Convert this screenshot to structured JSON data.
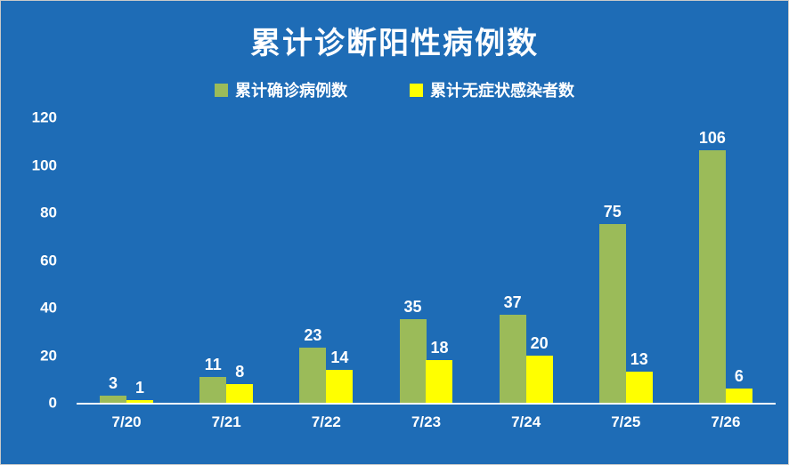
{
  "title": "累计诊断阳性病例数",
  "colors": {
    "background": "#1E6CB6",
    "series_confirmed": "#9BBB59",
    "series_asymptomatic": "#FFFF00",
    "text": "#FFFFFF",
    "axis": "#FFFFFF"
  },
  "chart_data": {
    "type": "bar",
    "title": "累计诊断阳性病例数",
    "categories": [
      "7/20",
      "7/21",
      "7/22",
      "7/23",
      "7/24",
      "7/25",
      "7/26"
    ],
    "series": [
      {
        "name": "累计确诊病例数",
        "color": "#9BBB59",
        "values": [
          3,
          11,
          23,
          35,
          37,
          75,
          106
        ]
      },
      {
        "name": "累计无症状感染者数",
        "color": "#FFFF00",
        "values": [
          1,
          8,
          14,
          18,
          20,
          13,
          6
        ]
      }
    ],
    "xlabel": "",
    "ylabel": "",
    "ylim": [
      0,
      120
    ],
    "yticks": [
      0,
      20,
      40,
      60,
      80,
      100,
      120
    ],
    "grid": false,
    "legend_position": "top",
    "data_labels": true
  }
}
